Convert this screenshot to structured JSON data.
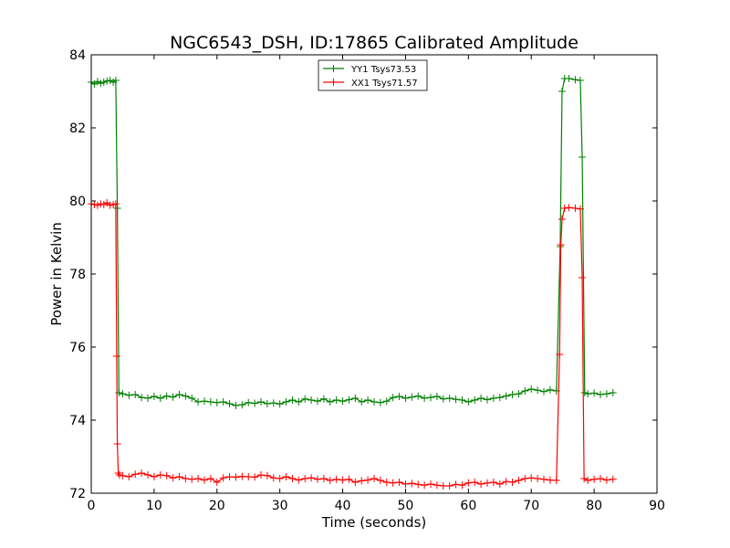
{
  "chart_data": {
    "type": "line",
    "title": "NGC6543_DSH, ID:17865 Calibrated Amplitude",
    "xlabel": "Time (seconds)",
    "ylabel": "Power in Kelvin",
    "xlim": [
      0,
      90
    ],
    "ylim": [
      72,
      84
    ],
    "xticks": [
      0,
      10,
      20,
      30,
      40,
      50,
      60,
      70,
      80,
      90
    ],
    "yticks": [
      72,
      74,
      76,
      78,
      80,
      82,
      84
    ],
    "xtick_labels": [
      "0",
      "10",
      "20",
      "30",
      "40",
      "50",
      "60",
      "70",
      "80",
      "90"
    ],
    "ytick_labels": [
      "72",
      "74",
      "76",
      "78",
      "80",
      "82",
      "84"
    ],
    "grid": false,
    "legend_position": "top-center",
    "series": [
      {
        "name": "YY1 Tsys73.53",
        "color": "#008000",
        "marker": "plus",
        "x": [
          0,
          0.5,
          1,
          1.5,
          2,
          2.5,
          3,
          3.5,
          3.9,
          4.15,
          4.4,
          5,
          6,
          7,
          8,
          9,
          10,
          11,
          12,
          13,
          14,
          15,
          16,
          17,
          18,
          19,
          20,
          21,
          22,
          23,
          24,
          25,
          26,
          27,
          28,
          29,
          30,
          31,
          32,
          33,
          34,
          35,
          36,
          37,
          38,
          39,
          40,
          41,
          42,
          43,
          44,
          45,
          46,
          47,
          48,
          49,
          50,
          51,
          52,
          53,
          54,
          55,
          56,
          57,
          58,
          59,
          60,
          61,
          62,
          63,
          64,
          65,
          66,
          67,
          68,
          69,
          70,
          71,
          72,
          73,
          74,
          74.6,
          74.9,
          75.3,
          76,
          77,
          77.8,
          78.1,
          78.5,
          79,
          80,
          81,
          82,
          83
        ],
        "y": [
          83.25,
          83.2,
          83.27,
          83.22,
          83.25,
          83.28,
          83.3,
          83.25,
          83.3,
          79.8,
          74.75,
          74.72,
          74.68,
          74.7,
          74.62,
          74.6,
          74.65,
          74.6,
          74.66,
          74.63,
          74.7,
          74.66,
          74.6,
          74.5,
          74.52,
          74.5,
          74.48,
          74.5,
          74.45,
          74.4,
          74.42,
          74.48,
          74.46,
          74.5,
          74.45,
          74.47,
          74.44,
          74.5,
          74.55,
          74.5,
          74.58,
          74.55,
          74.52,
          74.58,
          74.5,
          74.55,
          74.52,
          74.56,
          74.6,
          74.5,
          74.55,
          74.5,
          74.48,
          74.52,
          74.62,
          74.65,
          74.6,
          74.63,
          74.66,
          74.6,
          74.62,
          74.65,
          74.58,
          74.6,
          74.57,
          74.55,
          74.5,
          74.55,
          74.6,
          74.56,
          74.6,
          74.62,
          74.66,
          74.7,
          74.72,
          74.8,
          74.85,
          74.82,
          74.78,
          74.83,
          74.8,
          78.75,
          83.0,
          83.35,
          83.35,
          83.32,
          83.3,
          81.2,
          74.75,
          74.72,
          74.74,
          74.7,
          74.72,
          74.75
        ]
      },
      {
        "name": "XX1 Tsys71.57",
        "color": "#ff0000",
        "marker": "plus",
        "x": [
          0,
          0.5,
          1,
          1.5,
          2,
          2.5,
          3,
          3.5,
          3.9,
          4.05,
          4.15,
          4.3,
          4.5,
          5,
          6,
          7,
          8,
          9,
          10,
          11,
          12,
          13,
          14,
          15,
          16,
          17,
          18,
          19,
          20,
          21,
          22,
          23,
          24,
          25,
          26,
          27,
          28,
          29,
          30,
          31,
          32,
          33,
          34,
          35,
          36,
          37,
          38,
          39,
          40,
          41,
          42,
          43,
          44,
          45,
          46,
          47,
          48,
          49,
          50,
          51,
          52,
          53,
          54,
          55,
          56,
          57,
          58,
          59,
          60,
          61,
          62,
          63,
          64,
          65,
          66,
          67,
          68,
          69,
          70,
          71,
          72,
          73,
          74,
          74.5,
          74.7,
          74.9,
          75.3,
          76,
          77,
          77.8,
          78.1,
          78.4,
          79,
          80,
          81,
          82,
          83
        ],
        "y": [
          79.92,
          79.9,
          79.88,
          79.92,
          79.9,
          79.95,
          79.88,
          79.9,
          79.92,
          75.75,
          73.35,
          72.55,
          72.5,
          72.48,
          72.45,
          72.52,
          72.55,
          72.5,
          72.45,
          72.5,
          72.48,
          72.42,
          72.45,
          72.4,
          72.38,
          72.4,
          72.36,
          72.4,
          72.3,
          72.42,
          72.45,
          72.44,
          72.46,
          72.45,
          72.44,
          72.5,
          72.48,
          72.42,
          72.4,
          72.45,
          72.4,
          72.36,
          72.4,
          72.42,
          72.38,
          72.4,
          72.35,
          72.38,
          72.36,
          72.38,
          72.3,
          72.34,
          72.36,
          72.4,
          72.35,
          72.3,
          72.28,
          72.3,
          72.25,
          72.27,
          72.24,
          72.22,
          72.25,
          72.22,
          72.2,
          72.2,
          72.24,
          72.22,
          72.28,
          72.3,
          72.25,
          72.28,
          72.3,
          72.25,
          72.32,
          72.3,
          72.35,
          72.4,
          72.42,
          72.4,
          72.38,
          72.36,
          72.35,
          75.8,
          78.8,
          79.5,
          79.8,
          79.82,
          79.8,
          79.78,
          77.9,
          72.4,
          72.35,
          72.38,
          72.4,
          72.36,
          72.38
        ]
      }
    ]
  }
}
